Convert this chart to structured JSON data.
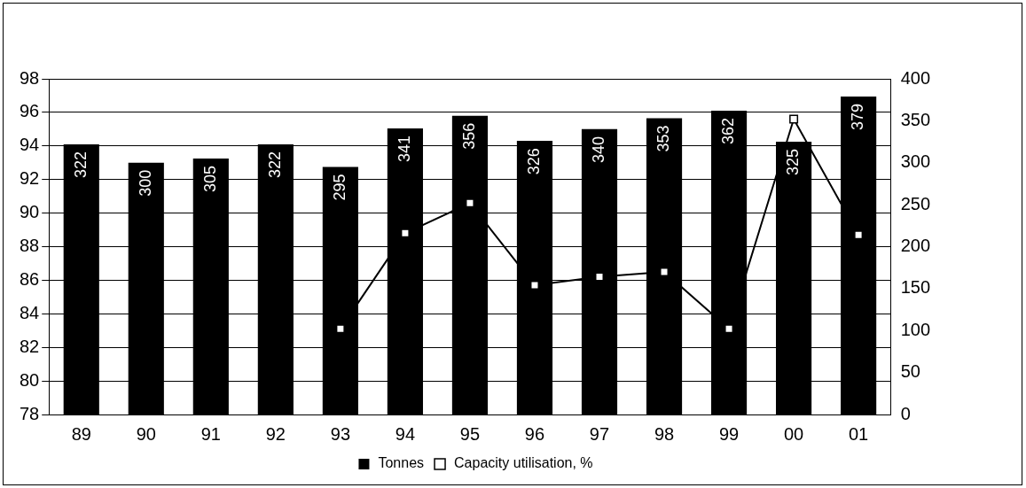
{
  "chart_data": {
    "type": "bar",
    "categories": [
      "89",
      "90",
      "91",
      "92",
      "93",
      "94",
      "95",
      "96",
      "97",
      "98",
      "99",
      "00",
      "01"
    ],
    "series": [
      {
        "name": "Tonnes",
        "axis": "y2",
        "color": "#000000",
        "values": [
          322,
          300,
          305,
          322,
          295,
          341,
          356,
          326,
          340,
          353,
          362,
          325,
          379
        ],
        "value_labels": [
          "322",
          "300",
          "305",
          "322",
          "295",
          "341",
          "356",
          "326",
          "340",
          "353",
          "362",
          "325",
          "379"
        ]
      },
      {
        "name": "Capacity utilisation, %",
        "type": "line",
        "axis": "y",
        "color": "#000000",
        "marker": "square",
        "values": [
          null,
          null,
          null,
          null,
          83.1,
          88.8,
          90.6,
          85.7,
          86.2,
          86.5,
          83.1,
          95.6,
          88.7
        ]
      }
    ],
    "ylim": [
      78,
      98
    ],
    "yticks": [
      78,
      80,
      82,
      84,
      86,
      88,
      90,
      92,
      94,
      96,
      98
    ],
    "y2lim": [
      0,
      400
    ],
    "y2ticks": [
      0,
      50,
      100,
      150,
      200,
      250,
      300,
      350,
      400
    ],
    "grid": "y",
    "legend": "bottom"
  }
}
